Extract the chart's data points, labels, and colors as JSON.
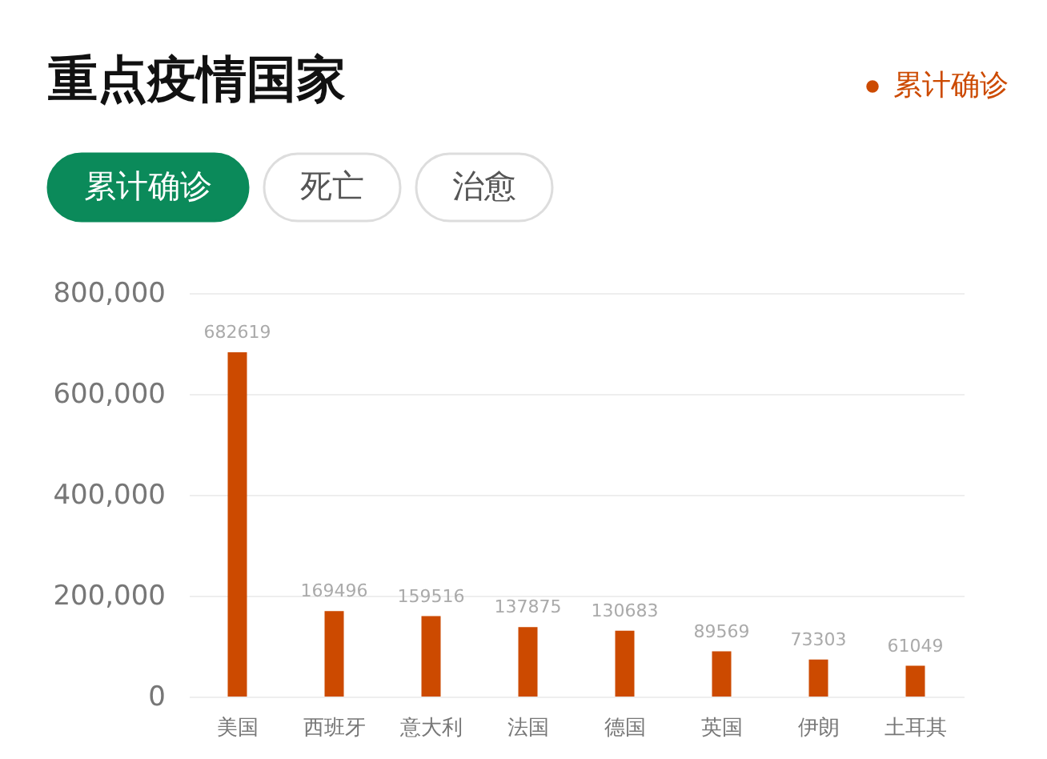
{
  "chart_data": {
    "type": "bar",
    "title": "重点疫情国家",
    "annotations": [
      "累计确诊",
      "死亡",
      "治愈"
    ],
    "categories": [
      "美国",
      "西班牙",
      "意大利",
      "法国",
      "德国",
      "英国",
      "伊朗",
      "土耳其"
    ],
    "series": [
      {
        "name": "累计确诊",
        "color": "#cc4a00",
        "values": [
          682619,
          169496,
          159516,
          137875,
          130683,
          89569,
          73303,
          61049
        ]
      }
    ],
    "ylim": [
      0,
      800000
    ],
    "yticks": [
      0,
      {
        "value": 200000,
        "label": "200,000"
      },
      {
        "value": 400000,
        "label": "400,000"
      },
      {
        "value": 600000,
        "label": "600,000"
      },
      {
        "value": 800000,
        "label": "800,000"
      }
    ],
    "grid": "y",
    "legend": "top right",
    "data_labels": true
  }
}
